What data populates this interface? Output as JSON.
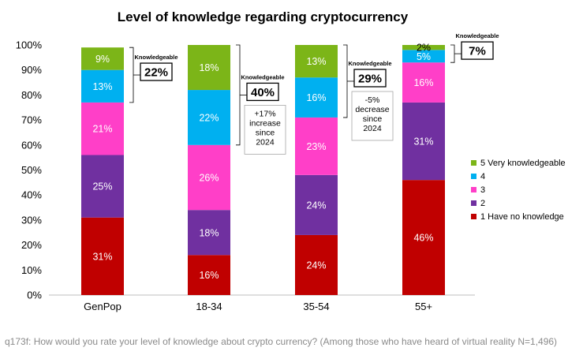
{
  "chart_data": {
    "type": "bar",
    "stacked": true,
    "title": "Level of knowledge regarding cryptocurrency",
    "categories": [
      "GenPop",
      "18-34",
      "35-54",
      "55+"
    ],
    "yticks": [
      "0%",
      "10%",
      "20%",
      "30%",
      "40%",
      "50%",
      "60%",
      "70%",
      "80%",
      "90%",
      "100%"
    ],
    "ylim": [
      0,
      100
    ],
    "grid": false,
    "legend_position": "right",
    "series": [
      {
        "name": "1 Have no knowledge",
        "color": "#c00000",
        "values": [
          31,
          16,
          24,
          46
        ],
        "labels": [
          "31%",
          "16%",
          "24%",
          "46%"
        ]
      },
      {
        "name": "2",
        "color": "#7030a0",
        "values": [
          25,
          18,
          24,
          31
        ],
        "labels": [
          "25%",
          "18%",
          "24%",
          "31%"
        ]
      },
      {
        "name": "3",
        "color": "#ff3fc8",
        "values": [
          21,
          26,
          23,
          16
        ],
        "labels": [
          "21%",
          "26%",
          "23%",
          "16%"
        ]
      },
      {
        "name": "4",
        "color": "#00b0f0",
        "values": [
          13,
          22,
          16,
          5
        ],
        "labels": [
          "13%",
          "22%",
          "16%",
          "5%"
        ]
      },
      {
        "name": "5 Very knowledgeable",
        "color": "#7cb518",
        "values": [
          9,
          18,
          13,
          2
        ],
        "labels": [
          "9%",
          "18%",
          "13%",
          "2%"
        ]
      }
    ],
    "annotations": [
      {
        "category": "GenPop",
        "title": "Knowledgeable",
        "value": "22%",
        "notes": []
      },
      {
        "category": "18-34",
        "title": "Knowledgeable",
        "value": "40%",
        "notes": [
          "+17%",
          "increase",
          "since",
          "2024"
        ]
      },
      {
        "category": "35-54",
        "title": "Knowledgeable",
        "value": "29%",
        "notes": [
          "-5%",
          "decrease",
          "since",
          "2024"
        ]
      },
      {
        "category": "55+",
        "title": "Knowledgeable",
        "value": "7%",
        "notes": []
      }
    ]
  },
  "footnote": "q173f: How would you rate your level of knowledge about crypto currency? (Among those who have heard of virtual reality N=1,496)"
}
